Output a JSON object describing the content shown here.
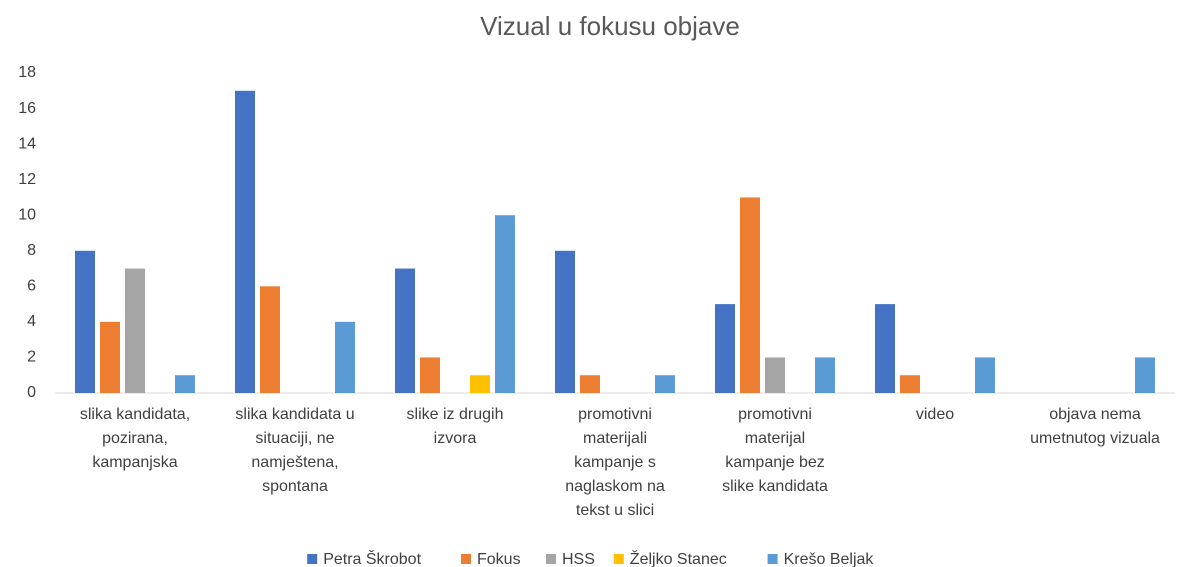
{
  "chart_data": {
    "type": "bar",
    "title": "Vizual u fokusu objave",
    "categories": [
      "slika kandidata, pozirana, kampanjska",
      "slika kandidata u situaciji, ne namještena, spontana",
      "slike iz drugih izvora",
      "promotivni materijali kampanje s naglaskom na tekst u slici",
      "promotivni materijal kampanje bez slike kandidata",
      "video",
      "objava nema umetnutog vizuala"
    ],
    "series": [
      {
        "name": "Petra Škrobot",
        "color": "#4472c4",
        "values": [
          8,
          17,
          7,
          8,
          5,
          5,
          0
        ]
      },
      {
        "name": "Fokus",
        "color": "#ed7d31",
        "values": [
          4,
          6,
          2,
          1,
          11,
          1,
          0
        ]
      },
      {
        "name": "HSS",
        "color": "#a5a5a5",
        "values": [
          7,
          0,
          0,
          0,
          2,
          0,
          0
        ]
      },
      {
        "name": "Željko Stanec",
        "color": "#ffc000",
        "values": [
          0,
          0,
          1,
          0,
          0,
          0,
          0
        ]
      },
      {
        "name": "Krešo Beljak",
        "color": "#5b9bd5",
        "values": [
          1,
          4,
          10,
          1,
          2,
          2,
          2
        ]
      }
    ],
    "ylim": [
      0,
      18
    ],
    "yticks": [
      0,
      2,
      4,
      6,
      8,
      10,
      12,
      14,
      16,
      18
    ],
    "grid": false,
    "legend": "bottom"
  }
}
